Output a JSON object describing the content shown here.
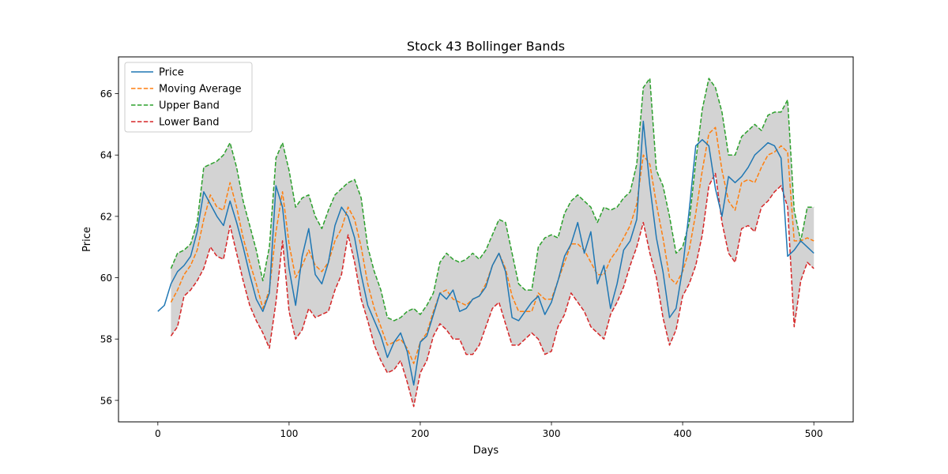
{
  "chart_data": {
    "type": "line",
    "title": "Stock 43 Bollinger Bands",
    "xlabel": "Days",
    "ylabel": "Price",
    "xlim": [
      -30,
      530
    ],
    "ylim": [
      55.3,
      67.2
    ],
    "xticks": [
      0,
      100,
      200,
      300,
      400,
      500
    ],
    "yticks": [
      56,
      58,
      60,
      62,
      64,
      66
    ],
    "grid": false,
    "legend_position": "top-left",
    "band_fill_color": "#d3d3d3",
    "series": [
      {
        "name": "Price",
        "color": "#1f77b4",
        "style": "solid",
        "x": [
          0,
          5,
          10,
          15,
          20,
          25,
          30,
          35,
          40,
          45,
          50,
          55,
          60,
          65,
          70,
          75,
          80,
          85,
          90,
          95,
          100,
          105,
          110,
          115,
          120,
          125,
          130,
          135,
          140,
          145,
          150,
          155,
          160,
          165,
          170,
          175,
          180,
          185,
          190,
          195,
          200,
          205,
          210,
          215,
          220,
          225,
          230,
          235,
          240,
          245,
          250,
          255,
          260,
          265,
          270,
          275,
          280,
          285,
          290,
          295,
          300,
          305,
          310,
          315,
          320,
          325,
          330,
          335,
          340,
          345,
          350,
          355,
          360,
          365,
          370,
          375,
          380,
          385,
          390,
          395,
          400,
          405,
          410,
          415,
          420,
          425,
          430,
          435,
          440,
          445,
          450,
          455,
          460,
          465,
          470,
          475,
          480,
          485,
          490,
          495,
          500
        ],
        "y": [
          58.9,
          59.1,
          59.8,
          60.2,
          60.4,
          60.7,
          61.5,
          62.8,
          62.4,
          62.0,
          61.7,
          62.5,
          61.8,
          61.0,
          60.1,
          59.3,
          58.9,
          59.5,
          63.0,
          62.3,
          60.3,
          59.1,
          60.7,
          61.6,
          60.1,
          59.8,
          60.5,
          61.7,
          62.3,
          62.0,
          61.3,
          60.1,
          59.1,
          58.6,
          58.1,
          57.4,
          57.9,
          58.2,
          57.6,
          56.5,
          57.9,
          58.1,
          58.8,
          59.5,
          59.3,
          59.6,
          58.9,
          59.0,
          59.3,
          59.4,
          59.7,
          60.4,
          60.8,
          60.2,
          58.7,
          58.6,
          58.9,
          59.2,
          59.4,
          58.8,
          59.2,
          59.9,
          60.7,
          61.1,
          61.8,
          60.8,
          61.5,
          59.8,
          60.4,
          59.0,
          59.8,
          60.9,
          61.2,
          61.9,
          65.1,
          63.0,
          61.3,
          60.2,
          58.7,
          59.0,
          60.3,
          62.2,
          64.3,
          64.5,
          64.3,
          62.9,
          62.0,
          63.3,
          63.1,
          63.3,
          63.6,
          64.0,
          64.2,
          64.4,
          64.3,
          63.9,
          60.7,
          60.9,
          61.2,
          61.0,
          60.8
        ]
      },
      {
        "name": "Moving Average",
        "color": "#ff7f0e",
        "style": "dashed",
        "x": [
          10,
          15,
          20,
          25,
          30,
          35,
          40,
          45,
          50,
          55,
          60,
          65,
          70,
          75,
          80,
          85,
          90,
          95,
          100,
          105,
          110,
          115,
          120,
          125,
          130,
          135,
          140,
          145,
          150,
          155,
          160,
          165,
          170,
          175,
          180,
          185,
          190,
          195,
          200,
          205,
          210,
          215,
          220,
          225,
          230,
          235,
          240,
          245,
          250,
          255,
          260,
          265,
          270,
          275,
          280,
          285,
          290,
          295,
          300,
          305,
          310,
          315,
          320,
          325,
          330,
          335,
          340,
          345,
          350,
          355,
          360,
          365,
          370,
          375,
          380,
          385,
          390,
          395,
          400,
          405,
          410,
          415,
          420,
          425,
          430,
          435,
          440,
          445,
          450,
          455,
          460,
          465,
          470,
          475,
          480,
          485,
          490,
          495,
          500
        ],
        "y": [
          59.2,
          59.6,
          60.1,
          60.4,
          60.9,
          61.9,
          62.7,
          62.3,
          62.2,
          63.1,
          62.3,
          61.3,
          60.5,
          59.8,
          59.0,
          59.6,
          61.5,
          62.8,
          61.1,
          60.0,
          60.4,
          60.9,
          60.4,
          60.2,
          60.5,
          61.2,
          61.6,
          62.3,
          61.9,
          61.0,
          59.8,
          59.0,
          58.4,
          57.8,
          57.9,
          58.0,
          57.7,
          57.2,
          57.9,
          58.2,
          58.9,
          59.5,
          59.6,
          59.3,
          59.2,
          59.1,
          59.3,
          59.4,
          59.8,
          60.4,
          60.8,
          60.3,
          59.4,
          58.9,
          58.9,
          58.9,
          59.5,
          59.3,
          59.3,
          59.9,
          60.5,
          61.1,
          61.1,
          60.9,
          60.5,
          60.1,
          60.1,
          60.6,
          60.9,
          61.3,
          61.7,
          62.4,
          64.0,
          63.7,
          62.4,
          61.3,
          60.0,
          59.8,
          60.2,
          60.9,
          62.1,
          63.5,
          64.7,
          64.9,
          63.5,
          62.5,
          62.2,
          63.1,
          63.2,
          63.1,
          63.6,
          64.0,
          64.1,
          64.3,
          64.1,
          61.2,
          61.2,
          61.3,
          61.2
        ]
      },
      {
        "name": "Upper Band",
        "color": "#2ca02c",
        "style": "dashed",
        "x": [
          10,
          15,
          20,
          25,
          30,
          35,
          40,
          45,
          50,
          55,
          60,
          65,
          70,
          75,
          80,
          85,
          90,
          95,
          100,
          105,
          110,
          115,
          120,
          125,
          130,
          135,
          140,
          145,
          150,
          155,
          160,
          165,
          170,
          175,
          180,
          185,
          190,
          195,
          200,
          205,
          210,
          215,
          220,
          225,
          230,
          235,
          240,
          245,
          250,
          255,
          260,
          265,
          270,
          275,
          280,
          285,
          290,
          295,
          300,
          305,
          310,
          315,
          320,
          325,
          330,
          335,
          340,
          345,
          350,
          355,
          360,
          365,
          370,
          375,
          380,
          385,
          390,
          395,
          400,
          405,
          410,
          415,
          420,
          425,
          430,
          435,
          440,
          445,
          450,
          455,
          460,
          465,
          470,
          475,
          480,
          485,
          490,
          495,
          500
        ],
        "y": [
          60.3,
          60.8,
          60.9,
          61.1,
          61.8,
          63.6,
          63.7,
          63.8,
          64.0,
          64.4,
          63.6,
          62.5,
          61.7,
          60.9,
          59.9,
          61.0,
          63.9,
          64.4,
          63.5,
          62.3,
          62.6,
          62.7,
          62.0,
          61.6,
          62.2,
          62.7,
          62.9,
          63.1,
          63.2,
          62.6,
          61.0,
          60.2,
          59.6,
          58.7,
          58.6,
          58.7,
          58.9,
          59.0,
          58.8,
          59.1,
          59.5,
          60.5,
          60.8,
          60.6,
          60.5,
          60.6,
          60.8,
          60.6,
          60.9,
          61.4,
          61.9,
          61.8,
          60.8,
          59.8,
          59.6,
          59.6,
          61.0,
          61.3,
          61.4,
          61.3,
          62.1,
          62.5,
          62.7,
          62.5,
          62.3,
          61.8,
          62.3,
          62.2,
          62.3,
          62.6,
          62.8,
          63.7,
          66.2,
          66.5,
          63.5,
          63.0,
          62.0,
          60.8,
          61.0,
          61.8,
          63.8,
          65.5,
          66.5,
          66.2,
          65.4,
          64.0,
          64.0,
          64.6,
          64.8,
          65.0,
          64.8,
          65.3,
          65.4,
          65.4,
          65.8,
          62.2,
          61.2,
          62.3,
          62.3
        ]
      },
      {
        "name": "Lower Band",
        "color": "#d62728",
        "style": "dashed",
        "x": [
          10,
          15,
          20,
          25,
          30,
          35,
          40,
          45,
          50,
          55,
          60,
          65,
          70,
          75,
          80,
          85,
          90,
          95,
          100,
          105,
          110,
          115,
          120,
          125,
          130,
          135,
          140,
          145,
          150,
          155,
          160,
          165,
          170,
          175,
          180,
          185,
          190,
          195,
          200,
          205,
          210,
          215,
          220,
          225,
          230,
          235,
          240,
          245,
          250,
          255,
          260,
          265,
          270,
          275,
          280,
          285,
          290,
          295,
          300,
          305,
          310,
          315,
          320,
          325,
          330,
          335,
          340,
          345,
          350,
          355,
          360,
          365,
          370,
          375,
          380,
          385,
          390,
          395,
          400,
          405,
          410,
          415,
          420,
          425,
          430,
          435,
          440,
          445,
          450,
          455,
          460,
          465,
          470,
          475,
          480,
          485,
          490,
          495,
          500
        ],
        "y": [
          58.1,
          58.4,
          59.4,
          59.6,
          59.9,
          60.3,
          61.0,
          60.7,
          60.6,
          61.7,
          60.8,
          59.9,
          59.1,
          58.6,
          58.2,
          57.7,
          59.2,
          61.2,
          58.9,
          58.0,
          58.3,
          59.0,
          58.7,
          58.8,
          58.9,
          59.6,
          60.1,
          61.4,
          60.5,
          59.3,
          58.6,
          57.8,
          57.3,
          56.9,
          57.0,
          57.3,
          56.6,
          55.8,
          56.9,
          57.3,
          58.1,
          58.5,
          58.3,
          58.0,
          58.0,
          57.5,
          57.5,
          57.8,
          58.4,
          59.0,
          59.2,
          58.5,
          57.8,
          57.8,
          58.0,
          58.2,
          58.0,
          57.5,
          57.6,
          58.4,
          58.8,
          59.5,
          59.2,
          58.9,
          58.4,
          58.2,
          58.0,
          58.8,
          59.2,
          59.7,
          60.4,
          61.0,
          61.8,
          60.8,
          60.0,
          58.7,
          57.8,
          58.3,
          59.4,
          59.8,
          60.4,
          61.4,
          63.0,
          63.4,
          61.8,
          60.8,
          60.5,
          61.6,
          61.7,
          61.5,
          62.3,
          62.5,
          62.8,
          63.0,
          62.3,
          58.4,
          59.9,
          60.5,
          60.3
        ]
      }
    ]
  }
}
